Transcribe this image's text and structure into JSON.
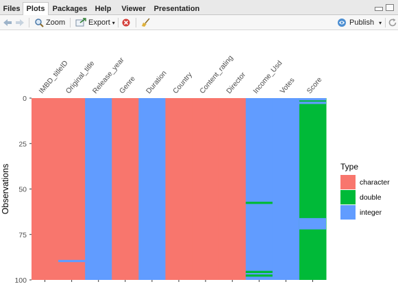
{
  "tabs": [
    "Files",
    "Plots",
    "Packages",
    "Help",
    "Viewer",
    "Presentation"
  ],
  "active_tab": "Plots",
  "toolbar": {
    "zoom_label": "Zoom",
    "export_label": "Export",
    "export_caret": "▾",
    "publish_label": "Publish",
    "publish_caret": "▾"
  },
  "icons": [
    "back-arrow-icon",
    "forward-arrow-icon",
    "zoom-icon",
    "export-icon",
    "remove-plot-icon",
    "broom-icon",
    "publish-icon",
    "refresh-icon"
  ],
  "chart_data": {
    "type": "heatmap",
    "title": "",
    "xlabel": "",
    "ylabel": "Observations",
    "ylim": [
      0,
      100
    ],
    "yticks": [
      0,
      25,
      50,
      75,
      100
    ],
    "columns": [
      "IMBD_titleID",
      "Original_title",
      "Release_year",
      "Genre",
      "Duration",
      "Country",
      "Content_rating",
      "Director",
      "Income_Usd",
      "Votes",
      "Score"
    ],
    "column_type": [
      "character",
      "character",
      "integer",
      "character",
      "integer",
      "character",
      "character",
      "character",
      "integer",
      "integer",
      "double"
    ],
    "row_exceptions": [
      {
        "column": "Original_title",
        "rows": [
          90
        ],
        "type": "integer"
      },
      {
        "column": "Income_Usd",
        "rows": [
          58,
          96,
          98
        ],
        "type": "double"
      },
      {
        "column": "Score",
        "rows": [
          1
        ],
        "type": "integer"
      },
      {
        "column": "Score",
        "rows": [
          3
        ],
        "type": "integer"
      },
      {
        "column": "Score",
        "rows": [
          67,
          68,
          69,
          70,
          71,
          72
        ],
        "type": "integer"
      }
    ],
    "legend": {
      "title": "Type",
      "placement": "right",
      "entries": [
        {
          "label": "character",
          "color": "#F8766D"
        },
        {
          "label": "double",
          "color": "#00BA38"
        },
        {
          "label": "integer",
          "color": "#619CFF"
        }
      ]
    }
  }
}
